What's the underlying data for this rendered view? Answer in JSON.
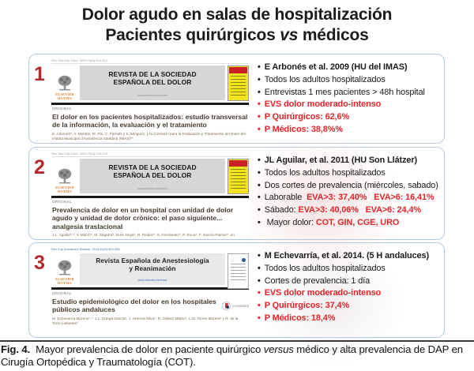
{
  "slide": {
    "title_line1": "Dolor agudo en salas de hospitalización",
    "title_line2_before": "Pacientes quirúrgicos ",
    "title_line2_italic": "vs",
    "title_line2_after": " médicos"
  },
  "caption": {
    "label": "Fig. 4.",
    "before_italic": "  Mayor prevalencia de dolor en paciente quirúrgico ",
    "italic": "versus",
    "after_italic": " médico y alta prevalencia de DAP en Cirugía Ortopédica y Traumatología (COT)."
  },
  "colors": {
    "number_red": "#b5282c",
    "highlight_red": "#e42528",
    "box_border_blue": "#b5c9e2",
    "masthead_gray": "#d6d6d6",
    "elsevier_orange": "#e87722",
    "cover_yellow": "#f2e41f",
    "cover_band_red": "#c9202a"
  },
  "sections": [
    {
      "number": "1",
      "journal": {
        "citation": "Rev Soc Esp Dolor. 2009;76(6):314-322",
        "logo_top": "ELSEVIER",
        "logo_bottom": "DOYMA",
        "masthead_line1": "REVISTA DE LA SOCIEDAD",
        "masthead_line2": "ESPAÑOLA DEL DOLOR",
        "masthead_url": "www.elsevier.es/resed",
        "section_label": "ORIGINAL",
        "article_title": "El dolor en los pacientes hospitalizados: estudio transversal de la información, la evaluación y el tratamiento",
        "authors": "E. Arbonés*, A. Montes, M. Riu, C. Farriols y S. Minguez; y la Comisión para la Evaluación y Tratamiento del Dolor del Institut Municipal d'Assistència Sanitària (IMAS)**",
        "cover_style": "yellow",
        "crossmark": false,
        "crossmark_label": ""
      },
      "bullets": [
        [
          {
            "t": "E Arbonés et al. 2009 (HU del IMAS)",
            "s": "bold-black"
          }
        ],
        [
          {
            "t": "Todos los adultos hospitalizados",
            "s": "black"
          }
        ],
        [
          {
            "t": "Entrevistas 1 mes pacientes > 48h hospital",
            "s": "black"
          }
        ],
        [
          {
            "t": "EVS dolor moderado-intenso",
            "s": "red"
          }
        ],
        [
          {
            "t": "P Quirúrgicos: 62,6%",
            "s": "red"
          }
        ],
        [
          {
            "t": "P Médicos: 38,8%%",
            "s": "red"
          }
        ]
      ]
    },
    {
      "number": "2",
      "journal": {
        "citation": "Rev Soc Esp Dolor. 2009;76(4):209-214",
        "logo_top": "ELSEVIER",
        "logo_bottom": "DOYMA",
        "masthead_line1": "REVISTA DE LA SOCIEDAD",
        "masthead_line2": "ESPAÑOLA DEL DOLOR",
        "masthead_url": "www.elsevier.es/resed",
        "section_label": "ORIGINAL",
        "article_title": "Prevalencia de dolor en un hospital con unidad de dolor agudo y unidad de dolor crónico: el paso siguiente... analgesia traslacional",
        "authors": "J.L. Aguilar*,*, Y. March*, M. Segarra*, M.M. Hoyá*, R. Peláez*, S. Fernández*, P. Roca*, F. García-Palmer*; en nombre del Grupo CODO con CODO Bio-Balear (COntrol del DOlor ... i COmunitat DOcent Biologia UIB)*",
        "cover_style": "yellow",
        "crossmark": false,
        "crossmark_label": ""
      },
      "bullets": [
        [
          {
            "t": "JL Aguilar, et al. 2011 (HU Son Llátzer)",
            "s": "bold-black"
          }
        ],
        [
          {
            "t": "Todos los adultos hospitalizados",
            "s": "black"
          }
        ],
        [
          {
            "t": "Dos cortes de prevalencia (miércoles, sabado)",
            "s": "black"
          }
        ],
        [
          {
            "t": "Laborable  ",
            "s": "black"
          },
          {
            "t": "EVA>3: 37,40%   EVA>6: 16,41%",
            "s": "red"
          }
        ],
        [
          {
            "t": "Sábado: ",
            "s": "black"
          },
          {
            "t": "EVA>3: 40,06%   EVA>6: 24,4%",
            "s": "red"
          }
        ],
        [
          {
            "t": " Mayor dolor: ",
            "s": "black"
          },
          {
            "t": "COT, GIN, CGE, URO",
            "s": "red"
          }
        ]
      ]
    },
    {
      "number": "3",
      "journal": {
        "citation": "Rev Esp Anestesiol Reanim. 2014;61(9):549-556",
        "logo_top": "ELSEVIER",
        "logo_bottom": "DOYMA",
        "masthead_line1": "Revista Española de Anestesiología",
        "masthead_line2": "y Reanimación",
        "masthead_url": "www.elsevier.es/redar",
        "section_label": "ORIGINAL",
        "article_title": "Estudio epidemiológico del dolor en los hospitales públicos andaluces",
        "authors": "M. Echevarría Moreno*,*, J.L. Ortega García*, J. Herrera Silva*, R. Gálvez Mateo*, L.M. Torres Morera* y R. de la Torre Liebanas*",
        "cover_style": "white",
        "crossmark": true,
        "crossmark_label": "CrossMark"
      },
      "bullets": [
        [
          {
            "t": "M Echevarría, et al. 2014. (5 H andaluces)",
            "s": "bold-black"
          }
        ],
        [
          {
            "t": "Todos los adultos hospitalizados",
            "s": "black"
          }
        ],
        [
          {
            "t": "Cortes de prevalencia: 1 día",
            "s": "black"
          }
        ],
        [
          {
            "t": "EVS dolor moderado-intenso",
            "s": "red"
          }
        ],
        [
          {
            "t": "P Quirúrgicos: 37,4%",
            "s": "red"
          }
        ],
        [
          {
            "t": "P Médicos: 18,4%",
            "s": "red"
          }
        ]
      ]
    }
  ]
}
